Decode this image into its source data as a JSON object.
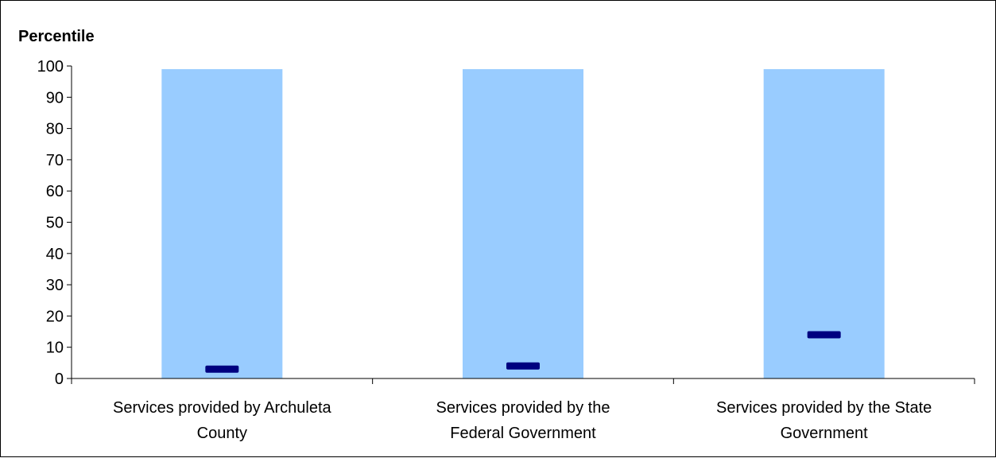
{
  "chart_data": {
    "type": "bar",
    "ylabel": "Percentile",
    "xlabel": "",
    "ylim": [
      0,
      100
    ],
    "yticks": [
      0,
      10,
      20,
      30,
      40,
      50,
      60,
      70,
      80,
      90,
      100
    ],
    "categories": [
      [
        "Services provided by Archuleta",
        "County"
      ],
      [
        "Services provided by the",
        "Federal Government"
      ],
      [
        "Services provided by the State",
        "Government"
      ]
    ],
    "series": [
      {
        "kind": "range",
        "values": [
          [
            0,
            99
          ],
          [
            0,
            99
          ],
          [
            0,
            99
          ]
        ],
        "color": "#99ccff"
      },
      {
        "kind": "marker",
        "values": [
          3,
          4,
          14
        ],
        "color": "#000080"
      }
    ],
    "grid": false,
    "legend": "none"
  }
}
